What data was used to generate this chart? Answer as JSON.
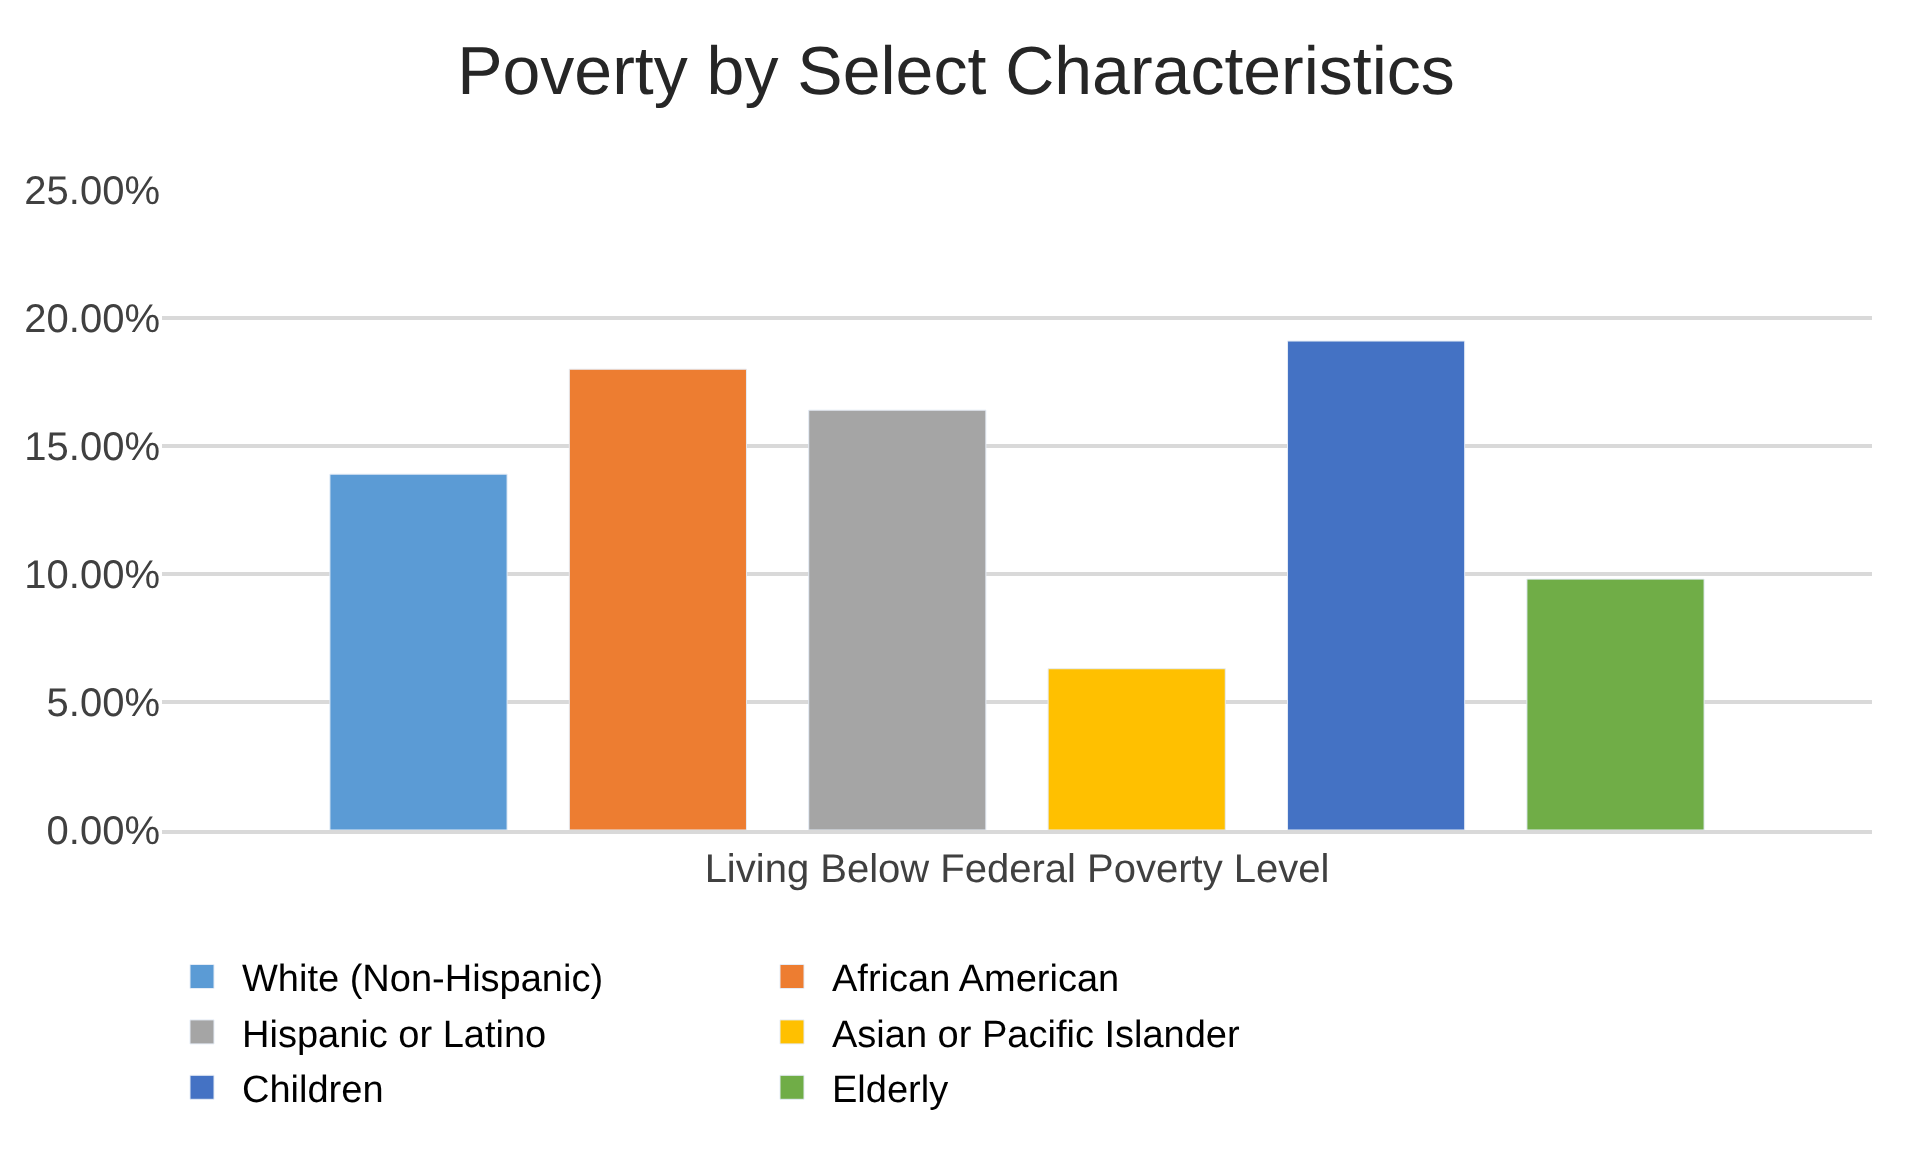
{
  "chart_data": {
    "type": "bar",
    "title": "Poverty by Select Characteristics",
    "categories": [
      "Living Below Federal Poverty Level"
    ],
    "series": [
      {
        "name": "White (Non-Hispanic)",
        "color": "#5b9bd5",
        "values": [
          13.9
        ]
      },
      {
        "name": "African American",
        "color": "#ed7d31",
        "values": [
          18.0
        ]
      },
      {
        "name": "Hispanic or Latino",
        "color": "#a5a5a5",
        "values": [
          16.4
        ]
      },
      {
        "name": "Asian or Pacific Islander",
        "color": "#ffc000",
        "values": [
          6.3
        ]
      },
      {
        "name": "Children",
        "color": "#4472c4",
        "values": [
          19.1
        ]
      },
      {
        "name": "Elderly",
        "color": "#70ad47",
        "values": [
          9.8
        ]
      }
    ],
    "ylim": [
      0,
      25
    ],
    "yticks": [
      {
        "value": 0,
        "label": "0.00%"
      },
      {
        "value": 5,
        "label": "5.00%"
      },
      {
        "value": 10,
        "label": "10.00%"
      },
      {
        "value": 15,
        "label": "15.00%"
      },
      {
        "value": 20,
        "label": "20.00%"
      },
      {
        "value": 25,
        "label": "25.00%"
      }
    ],
    "grid": "y",
    "legend": "bottom"
  }
}
